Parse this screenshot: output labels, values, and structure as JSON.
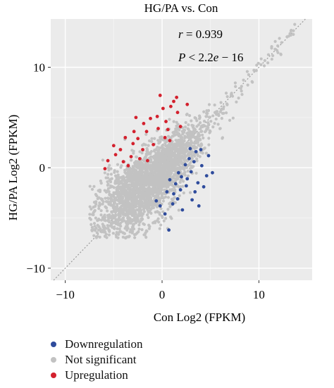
{
  "chart_data": {
    "type": "scatter",
    "title": "HG/PA vs. Con",
    "xlabel": "Con Log2 (FPKM)",
    "ylabel": "HG/PA Log2 (FPKM)",
    "xlim": [
      -11.5,
      15.5
    ],
    "ylim": [
      -11.2,
      14.8
    ],
    "xticks": [
      -10,
      0,
      10
    ],
    "yticks": [
      -10,
      0,
      10
    ],
    "grid": true,
    "background": "#ebebeb",
    "diagonal_line": true,
    "annotations": [
      {
        "r_symbol": "r",
        "r_rest": " = 0.939"
      },
      {
        "p_symbol": "P",
        "p_rest1": " < 2.2",
        "p_symbol2": "e",
        "p_rest2": " − 16"
      }
    ],
    "legend_position": "bottom-left",
    "series": [
      {
        "name": "Downregulation",
        "color": "#2e4b9c",
        "points": [
          [
            0.8,
            -1.2
          ],
          [
            1.2,
            -2.6
          ],
          [
            2.0,
            -0.9
          ],
          [
            2.5,
            -1.8
          ],
          [
            1.6,
            -3.1
          ],
          [
            3.0,
            -0.4
          ],
          [
            2.1,
            -4.2
          ],
          [
            0.7,
            -6.2
          ],
          [
            1.1,
            -3.6
          ],
          [
            3.3,
            0.6
          ],
          [
            3.7,
            -1.5
          ],
          [
            4.1,
            0.2
          ],
          [
            4.8,
            1.2
          ],
          [
            3.4,
            -2.4
          ],
          [
            4.6,
            -0.8
          ],
          [
            2.4,
            0.3
          ],
          [
            1.4,
            -1.6
          ],
          [
            -0.2,
            -3.8
          ],
          [
            0.3,
            -4.6
          ],
          [
            1.9,
            -2.2
          ],
          [
            2.8,
            0.9
          ],
          [
            3.1,
            -3.2
          ],
          [
            3.5,
            1.6
          ],
          [
            0.5,
            -2.4
          ],
          [
            1.7,
            -0.5
          ],
          [
            4.3,
            -1.9
          ],
          [
            5.2,
            -0.5
          ],
          [
            -0.6,
            -3.3
          ],
          [
            3.8,
            -3.8
          ],
          [
            2.6,
            -1.1
          ],
          [
            4.0,
            1.8
          ],
          [
            2.9,
            1.9
          ]
        ]
      },
      {
        "name": "Not significant",
        "color": "#c2c2c2"
      },
      {
        "name": "Upregulation",
        "color": "#d3202d",
        "points": [
          [
            -2.5,
            2.9
          ],
          [
            -1.6,
            3.6
          ],
          [
            -0.5,
            5.1
          ],
          [
            0.4,
            4.6
          ],
          [
            -3.2,
            1.1
          ],
          [
            -4.0,
            0.6
          ],
          [
            -5.6,
            0.7
          ],
          [
            -5.9,
            -0.1
          ],
          [
            -1.2,
            4.9
          ],
          [
            0.9,
            6.1
          ],
          [
            1.6,
            5.5
          ],
          [
            -0.9,
            2.3
          ],
          [
            -2.0,
            1.8
          ],
          [
            -3.0,
            2.4
          ],
          [
            -4.3,
            1.8
          ],
          [
            0.3,
            3.0
          ],
          [
            1.9,
            4.1
          ],
          [
            -1.5,
            0.7
          ],
          [
            -3.8,
            3.0
          ],
          [
            0.1,
            5.9
          ],
          [
            -2.9,
            3.6
          ],
          [
            1.2,
            6.6
          ],
          [
            2.6,
            6.3
          ],
          [
            -0.4,
            3.9
          ],
          [
            -4.8,
            1.3
          ],
          [
            -1.9,
            4.4
          ],
          [
            -3.5,
            0.2
          ],
          [
            0.6,
            3.8
          ],
          [
            -2.3,
            0.9
          ],
          [
            1.5,
            7.0
          ],
          [
            -0.2,
            7.2
          ],
          [
            -5.0,
            2.2
          ],
          [
            -2.7,
            5.0
          ],
          [
            0.8,
            2.7
          ]
        ]
      }
    ]
  },
  "legend": [
    {
      "label": "Downregulation",
      "color": "#2e4b9c"
    },
    {
      "label": "Not significant",
      "color": "#c2c2c2"
    },
    {
      "label": "Upregulation",
      "color": "#d3202d"
    }
  ]
}
